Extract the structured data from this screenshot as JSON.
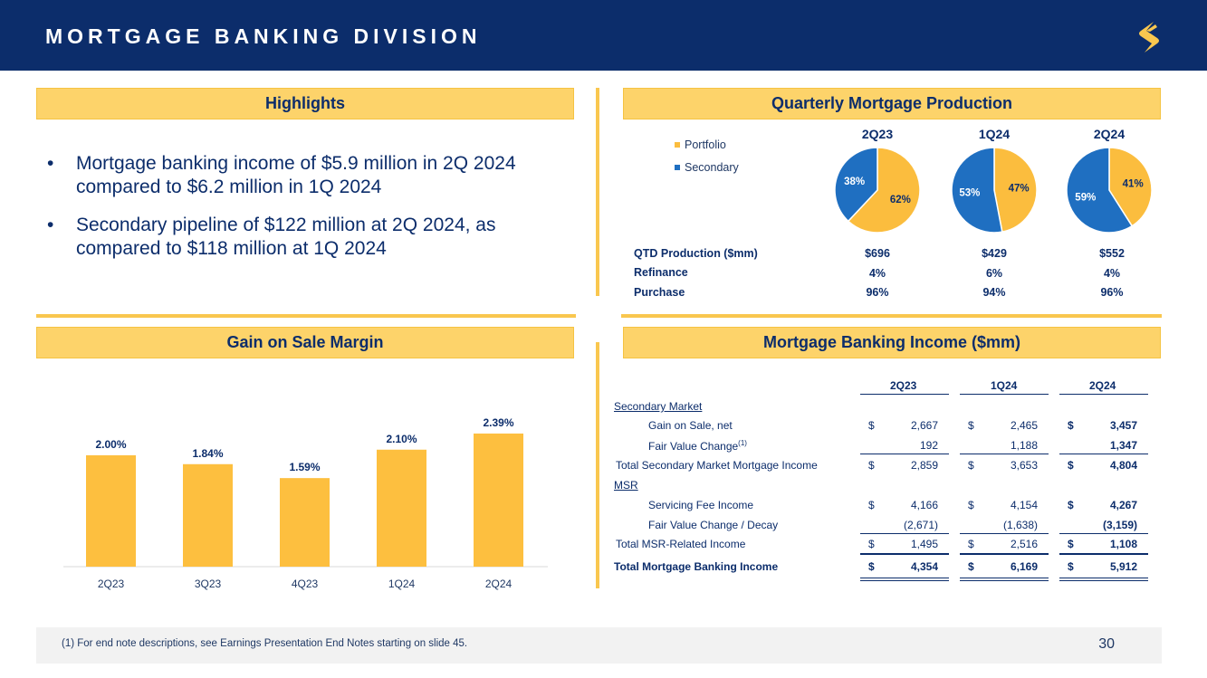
{
  "header": {
    "title": "MORTGAGE BANKING DIVISION"
  },
  "highlights": {
    "title": "Highlights",
    "bullets": [
      "Mortgage banking income of $5.9 million in 2Q 2024 compared to $6.2 million in 1Q 2024",
      "Secondary pipeline of $122 million at 2Q 2024, as compared to $118 million at 1Q 2024"
    ],
    "bullet_glyph": "•"
  },
  "production": {
    "title": "Quarterly Mortgage Production",
    "legend": [
      {
        "label": "Portfolio",
        "color": "#fbbd3e"
      },
      {
        "label": "Secondary",
        "color": "#1f6fc1"
      }
    ],
    "table": {
      "rows": [
        {
          "label": "QTD Production ($mm)",
          "values": [
            "$696",
            "$429",
            "$552"
          ]
        },
        {
          "label": "Refinance",
          "values": [
            "4%",
            "6%",
            "4%"
          ]
        },
        {
          "label": "Purchase",
          "values": [
            "96%",
            "94%",
            "96%"
          ]
        }
      ]
    }
  },
  "gain_on_sale": {
    "title": "Gain on Sale Margin"
  },
  "income": {
    "title": "Mortgage Banking Income ($mm)",
    "columns": [
      "2Q23",
      "1Q24",
      "2Q24"
    ],
    "currency": "$",
    "secondary_market": "Secondary Market",
    "msr": "MSR",
    "rows": [
      {
        "label": "Gain on Sale, net",
        "values": [
          "2,667",
          "2,465",
          "3,457"
        ]
      },
      {
        "label": "Fair Value Change",
        "footnote": "(1)",
        "values": [
          "192",
          "1,188",
          "1,347"
        ]
      },
      {
        "label": "Total Secondary Market Mortgage Income",
        "values": [
          "2,859",
          "3,653",
          "4,804"
        ]
      },
      {
        "label": "Servicing Fee Income",
        "values": [
          "4,166",
          "4,154",
          "4,267"
        ]
      },
      {
        "label": "Fair Value Change / Decay",
        "values": [
          "(2,671)",
          "(1,638)",
          "(3,159)"
        ]
      },
      {
        "label": "Total MSR-Related Income",
        "values": [
          "1,495",
          "2,516",
          "1,108"
        ]
      },
      {
        "label": "Total Mortgage Banking Income",
        "values": [
          "4,354",
          "6,169",
          "5,912"
        ]
      }
    ]
  },
  "footer": {
    "note": "(1)   For end note descriptions, see Earnings Presentation End Notes starting on slide 45.",
    "page": "30"
  },
  "chart_data": [
    {
      "type": "bar",
      "title": "Gain on Sale Margin",
      "categories": [
        "2Q23",
        "3Q23",
        "4Q23",
        "1Q24",
        "2Q24"
      ],
      "values": [
        2.0,
        1.84,
        1.59,
        2.1,
        2.39
      ],
      "labels": [
        "2.00%",
        "1.84%",
        "1.59%",
        "2.10%",
        "2.39%"
      ],
      "ylim": [
        0,
        2.6
      ],
      "color": "#fdbf3f"
    },
    {
      "type": "pie",
      "title": "2Q23",
      "slices": [
        {
          "name": "Portfolio",
          "value": 62,
          "label": "62%"
        },
        {
          "name": "Secondary",
          "value": 38,
          "label": "38%"
        }
      ]
    },
    {
      "type": "pie",
      "title": "1Q24",
      "slices": [
        {
          "name": "Portfolio",
          "value": 47,
          "label": "47%"
        },
        {
          "name": "Secondary",
          "value": 53,
          "label": "53%"
        }
      ]
    },
    {
      "type": "pie",
      "title": "2Q24",
      "slices": [
        {
          "name": "Portfolio",
          "value": 41,
          "label": "41%"
        },
        {
          "name": "Secondary",
          "value": 59,
          "label": "59%"
        }
      ]
    }
  ]
}
